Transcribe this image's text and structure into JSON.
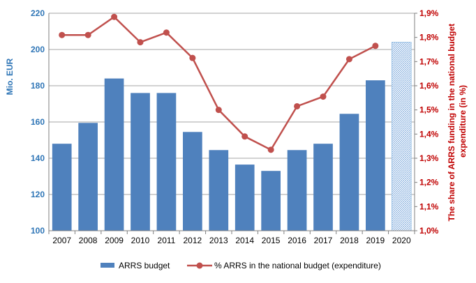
{
  "chart_data": {
    "type": "bar",
    "categories": [
      "2007",
      "2008",
      "2009",
      "2010",
      "2011",
      "2012",
      "2013",
      "2014",
      "2015",
      "2016",
      "2017",
      "2018",
      "2019",
      "2020"
    ],
    "series": [
      {
        "name": "ARRS budget",
        "kind": "bar",
        "axis": "left",
        "values": [
          148,
          159.5,
          184,
          176,
          176,
          154.5,
          144.5,
          136.5,
          133,
          144.5,
          148,
          164.5,
          183,
          204
        ],
        "hatched_categories": [
          "2020"
        ]
      },
      {
        "name": "% ARRS in the national budget (expenditure)",
        "kind": "line",
        "axis": "right",
        "values": [
          1.81,
          1.81,
          1.885,
          1.78,
          1.82,
          1.715,
          1.5,
          1.39,
          1.335,
          1.515,
          1.555,
          1.71,
          1.765,
          null
        ]
      }
    ],
    "y_left": {
      "label": "Mio. EUR",
      "lim": [
        100,
        220
      ],
      "ticks": [
        "100",
        "120",
        "140",
        "160",
        "180",
        "200",
        "220"
      ],
      "color": "#2e75b6"
    },
    "y_right": {
      "label_lines": [
        "The share of ARRS funding in the national budget",
        "expenditure (in %)"
      ],
      "lim": [
        1.0,
        1.9
      ],
      "ticks": [
        "1,0%",
        "1,1%",
        "1,2%",
        "1,3%",
        "1,4%",
        "1,5%",
        "1,6%",
        "1,7%",
        "1,8%",
        "1,9%"
      ],
      "color": "#c00000"
    },
    "grid": true,
    "legend_position": "bottom",
    "colors": {
      "bar": "#4f81bd",
      "bar_hatch": "#9dc3e6",
      "line": "#c0504d",
      "grid": "#a6a6a6"
    }
  }
}
